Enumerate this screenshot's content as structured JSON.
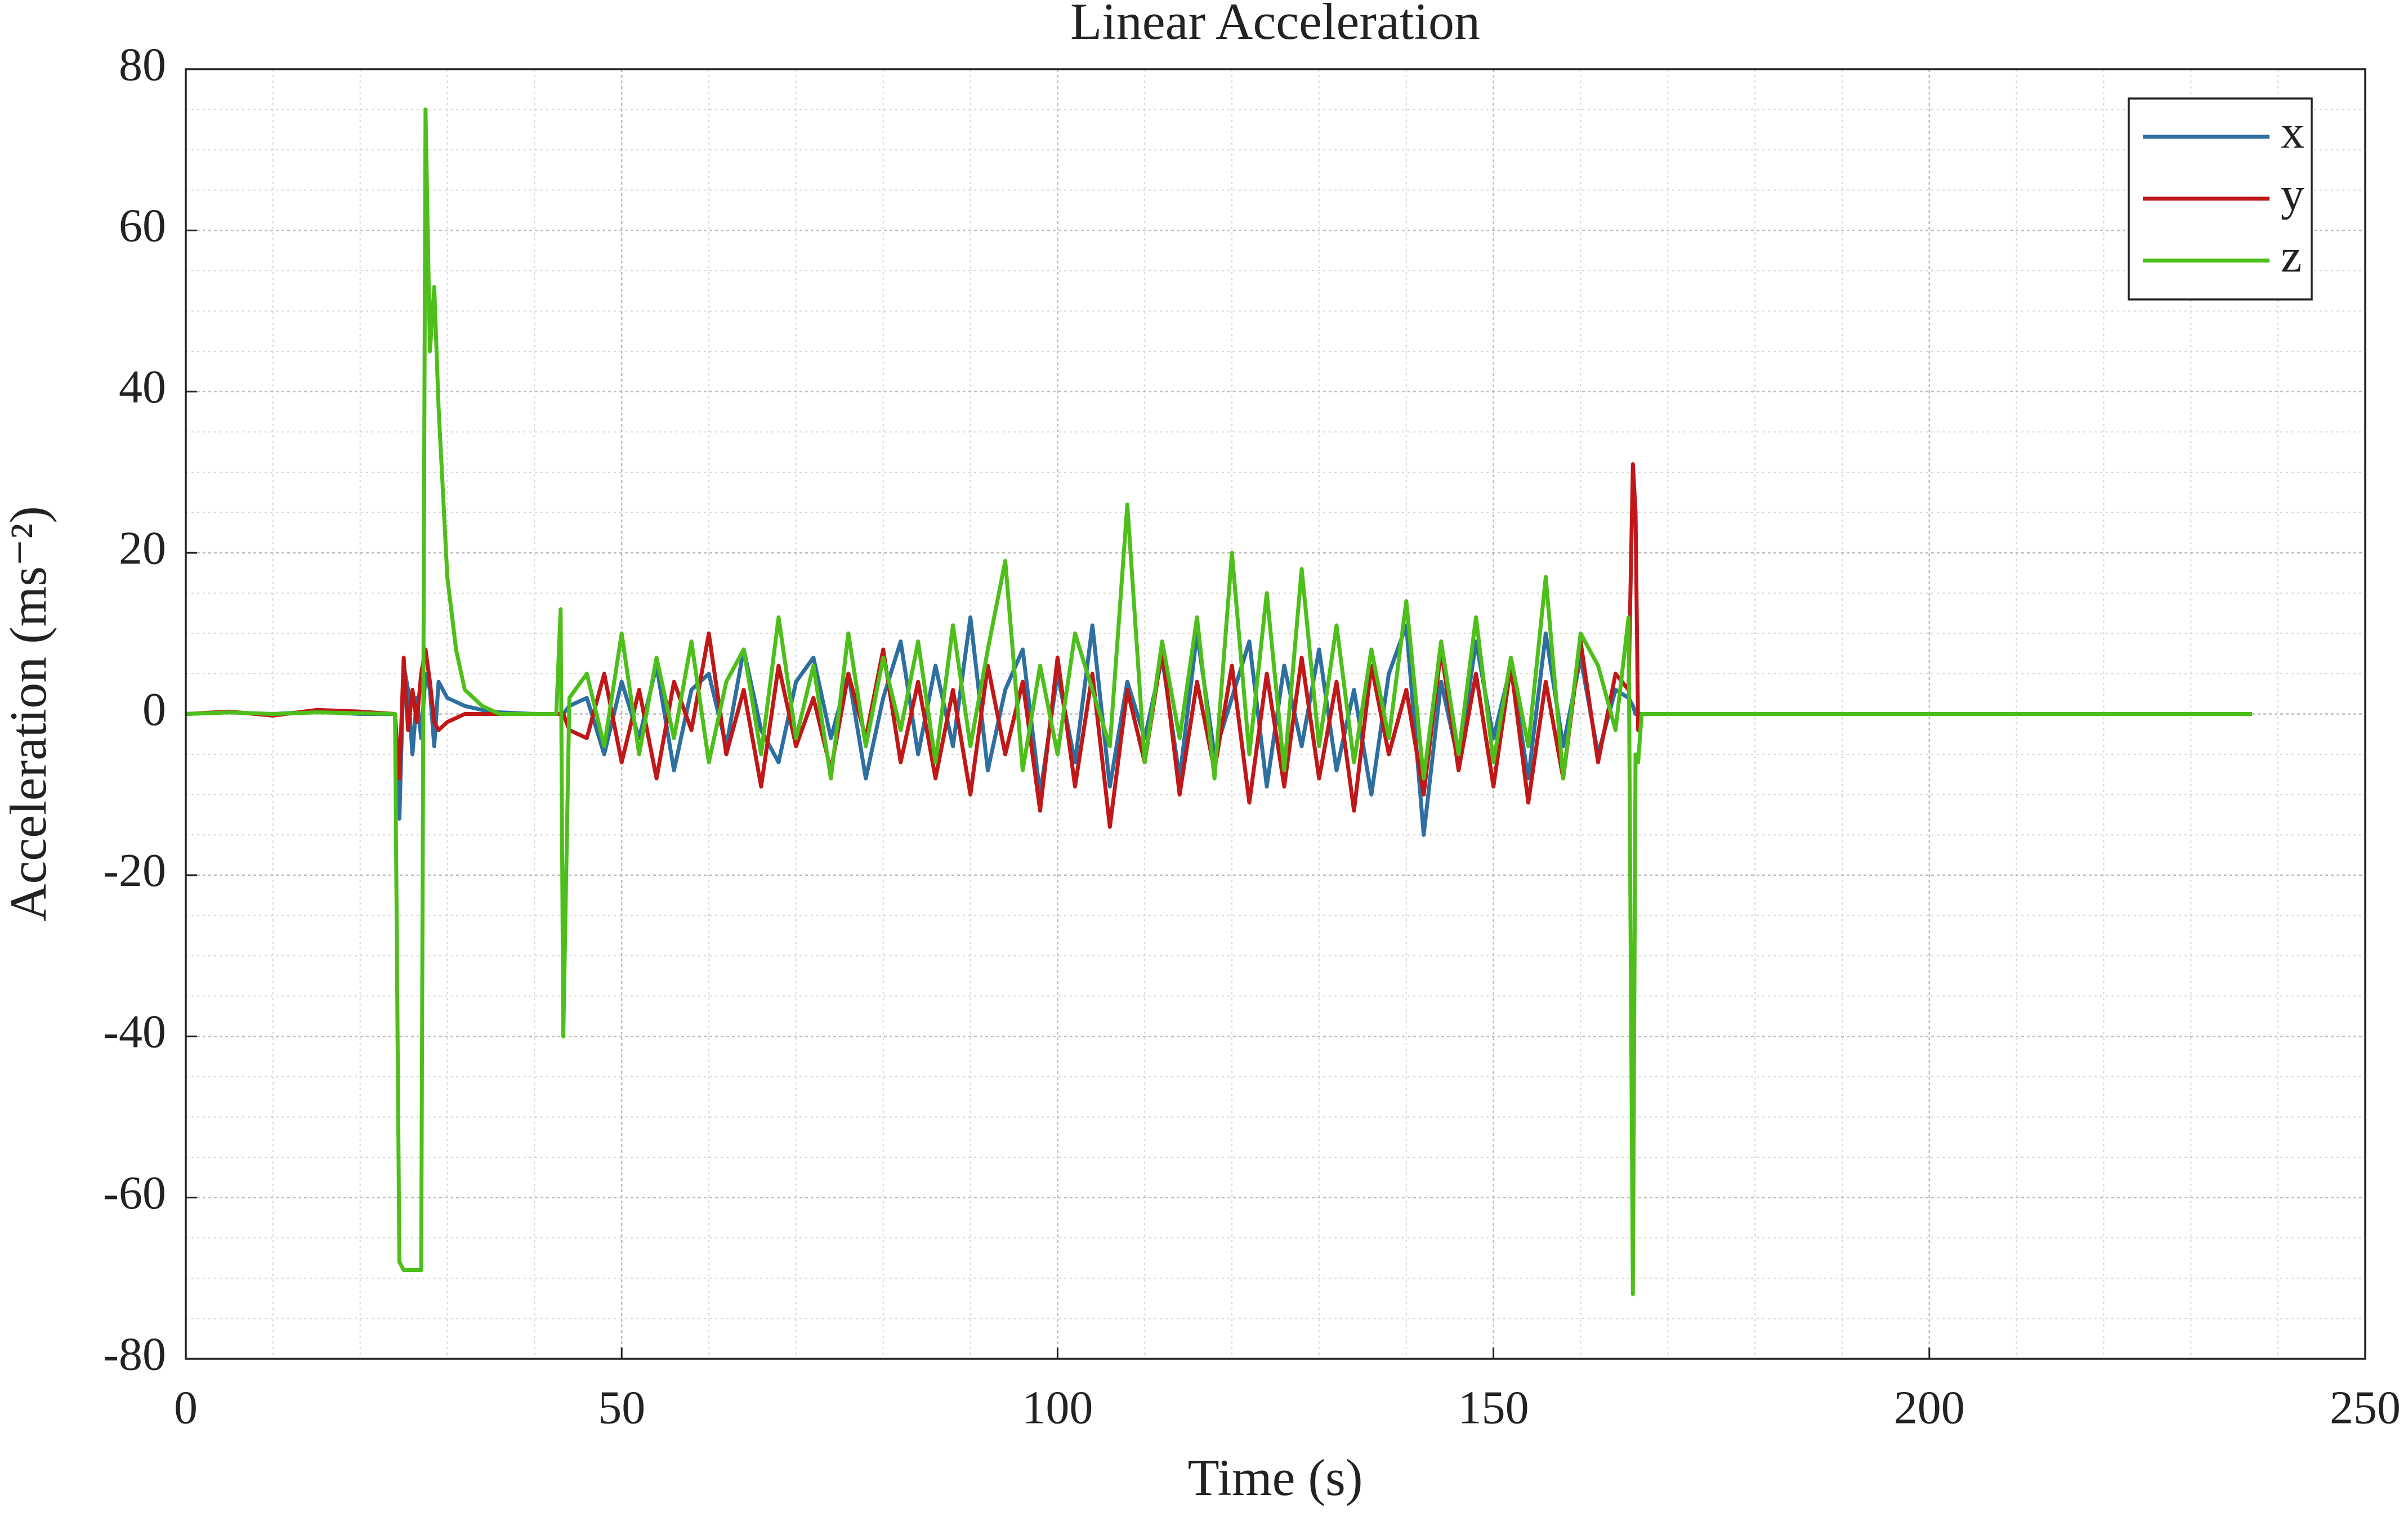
{
  "chart_data": {
    "type": "line",
    "title": "Linear Acceleration",
    "xlabel": "Time (s)",
    "ylabel": "Acceleration (ms⁻²)",
    "x": [
      0,
      5,
      10,
      15,
      20,
      24,
      24.5,
      25,
      25.5,
      26,
      26.5,
      27,
      27.5,
      28,
      28.5,
      29,
      30,
      31,
      32,
      34,
      36,
      40,
      42.5,
      43,
      43.3,
      44,
      46,
      48,
      50,
      52,
      54,
      56,
      58,
      60,
      62,
      64,
      66,
      68,
      70,
      72,
      74,
      76,
      78,
      80,
      82,
      84,
      86,
      88,
      90,
      92,
      94,
      96,
      98,
      100,
      102,
      104,
      106,
      108,
      110,
      112,
      114,
      116,
      118,
      120,
      122,
      124,
      126,
      128,
      130,
      132,
      134,
      136,
      138,
      140,
      142,
      144,
      146,
      148,
      150,
      152,
      154,
      156,
      158,
      160,
      162,
      164,
      165.5,
      166,
      166.3,
      166.6,
      167,
      170,
      200,
      237
    ],
    "series": [
      {
        "name": "x",
        "color": "#2e6fa0",
        "values": [
          0,
          0.2,
          0,
          0.3,
          0,
          0,
          -13,
          6,
          3,
          -5,
          2,
          -3,
          5,
          3,
          -4,
          4,
          2,
          1.5,
          1,
          0.5,
          0.2,
          0,
          0,
          0,
          0,
          1,
          2,
          -5,
          4,
          -3,
          6,
          -7,
          3,
          5,
          -4,
          8,
          -2,
          -6,
          4,
          7,
          -3,
          5,
          -8,
          2,
          9,
          -5,
          6,
          -4,
          12,
          -7,
          3,
          8,
          -10,
          5,
          -6,
          11,
          -9,
          4,
          -3,
          7,
          -8,
          10,
          -5,
          2,
          9,
          -9,
          6,
          -4,
          8,
          -7,
          3,
          -10,
          5,
          11,
          -15,
          4,
          -6,
          9,
          -3,
          6,
          -8,
          10,
          -4,
          7,
          -5,
          3,
          2,
          1,
          0,
          0,
          0,
          0,
          0,
          0
        ]
      },
      {
        "name": "y",
        "color": "#c01818",
        "values": [
          0,
          0.3,
          -0.2,
          0.5,
          0.3,
          0,
          -8,
          7,
          -2,
          3,
          -1,
          5,
          8,
          4,
          -1,
          -2,
          -1,
          -0.5,
          0,
          0,
          0,
          0,
          0,
          0,
          0,
          -2,
          -3,
          5,
          -6,
          3,
          -8,
          4,
          -2,
          10,
          -5,
          3,
          -9,
          6,
          -4,
          2,
          -7,
          5,
          -3,
          8,
          -6,
          4,
          -8,
          3,
          -10,
          6,
          -5,
          4,
          -12,
          7,
          -9,
          5,
          -14,
          3,
          -6,
          8,
          -10,
          4,
          -7,
          6,
          -11,
          5,
          -9,
          7,
          -8,
          4,
          -12,
          6,
          -5,
          3,
          -10,
          8,
          -7,
          5,
          -9,
          6,
          -11,
          4,
          -8,
          9,
          -6,
          5,
          3,
          31,
          25,
          -2,
          0,
          0,
          0,
          0
        ]
      },
      {
        "name": "z",
        "color": "#4dbf1a",
        "values": [
          0,
          0.2,
          0,
          0.2,
          0.1,
          0,
          -68,
          -69,
          -69,
          -69,
          -69,
          -69,
          75,
          45,
          53,
          38,
          17,
          8,
          3,
          1,
          0,
          0,
          0,
          13,
          -40,
          2,
          5,
          -4,
          10,
          -5,
          7,
          -3,
          9,
          -6,
          4,
          8,
          -5,
          12,
          -3,
          6,
          -8,
          10,
          -4,
          7,
          -2,
          9,
          -6,
          11,
          -4,
          8,
          19,
          -7,
          6,
          -5,
          10,
          3,
          -4,
          26,
          -6,
          9,
          -3,
          12,
          -8,
          20,
          -5,
          15,
          -7,
          18,
          -4,
          11,
          -6,
          8,
          -3,
          14,
          -8,
          9,
          -5,
          12,
          -6,
          7,
          -4,
          17,
          -8,
          10,
          6,
          -2,
          12,
          -72,
          -5,
          -6,
          0,
          0,
          0,
          0
        ]
      }
    ],
    "xlim": [
      0,
      250
    ],
    "xticks": [
      0,
      50,
      100,
      150,
      200,
      250
    ],
    "ylim": [
      -80,
      80
    ],
    "yticks": [
      -80,
      -60,
      -40,
      -20,
      0,
      20,
      40,
      60,
      80
    ],
    "grid": true,
    "minor_grid": true,
    "legend": "upper right"
  }
}
